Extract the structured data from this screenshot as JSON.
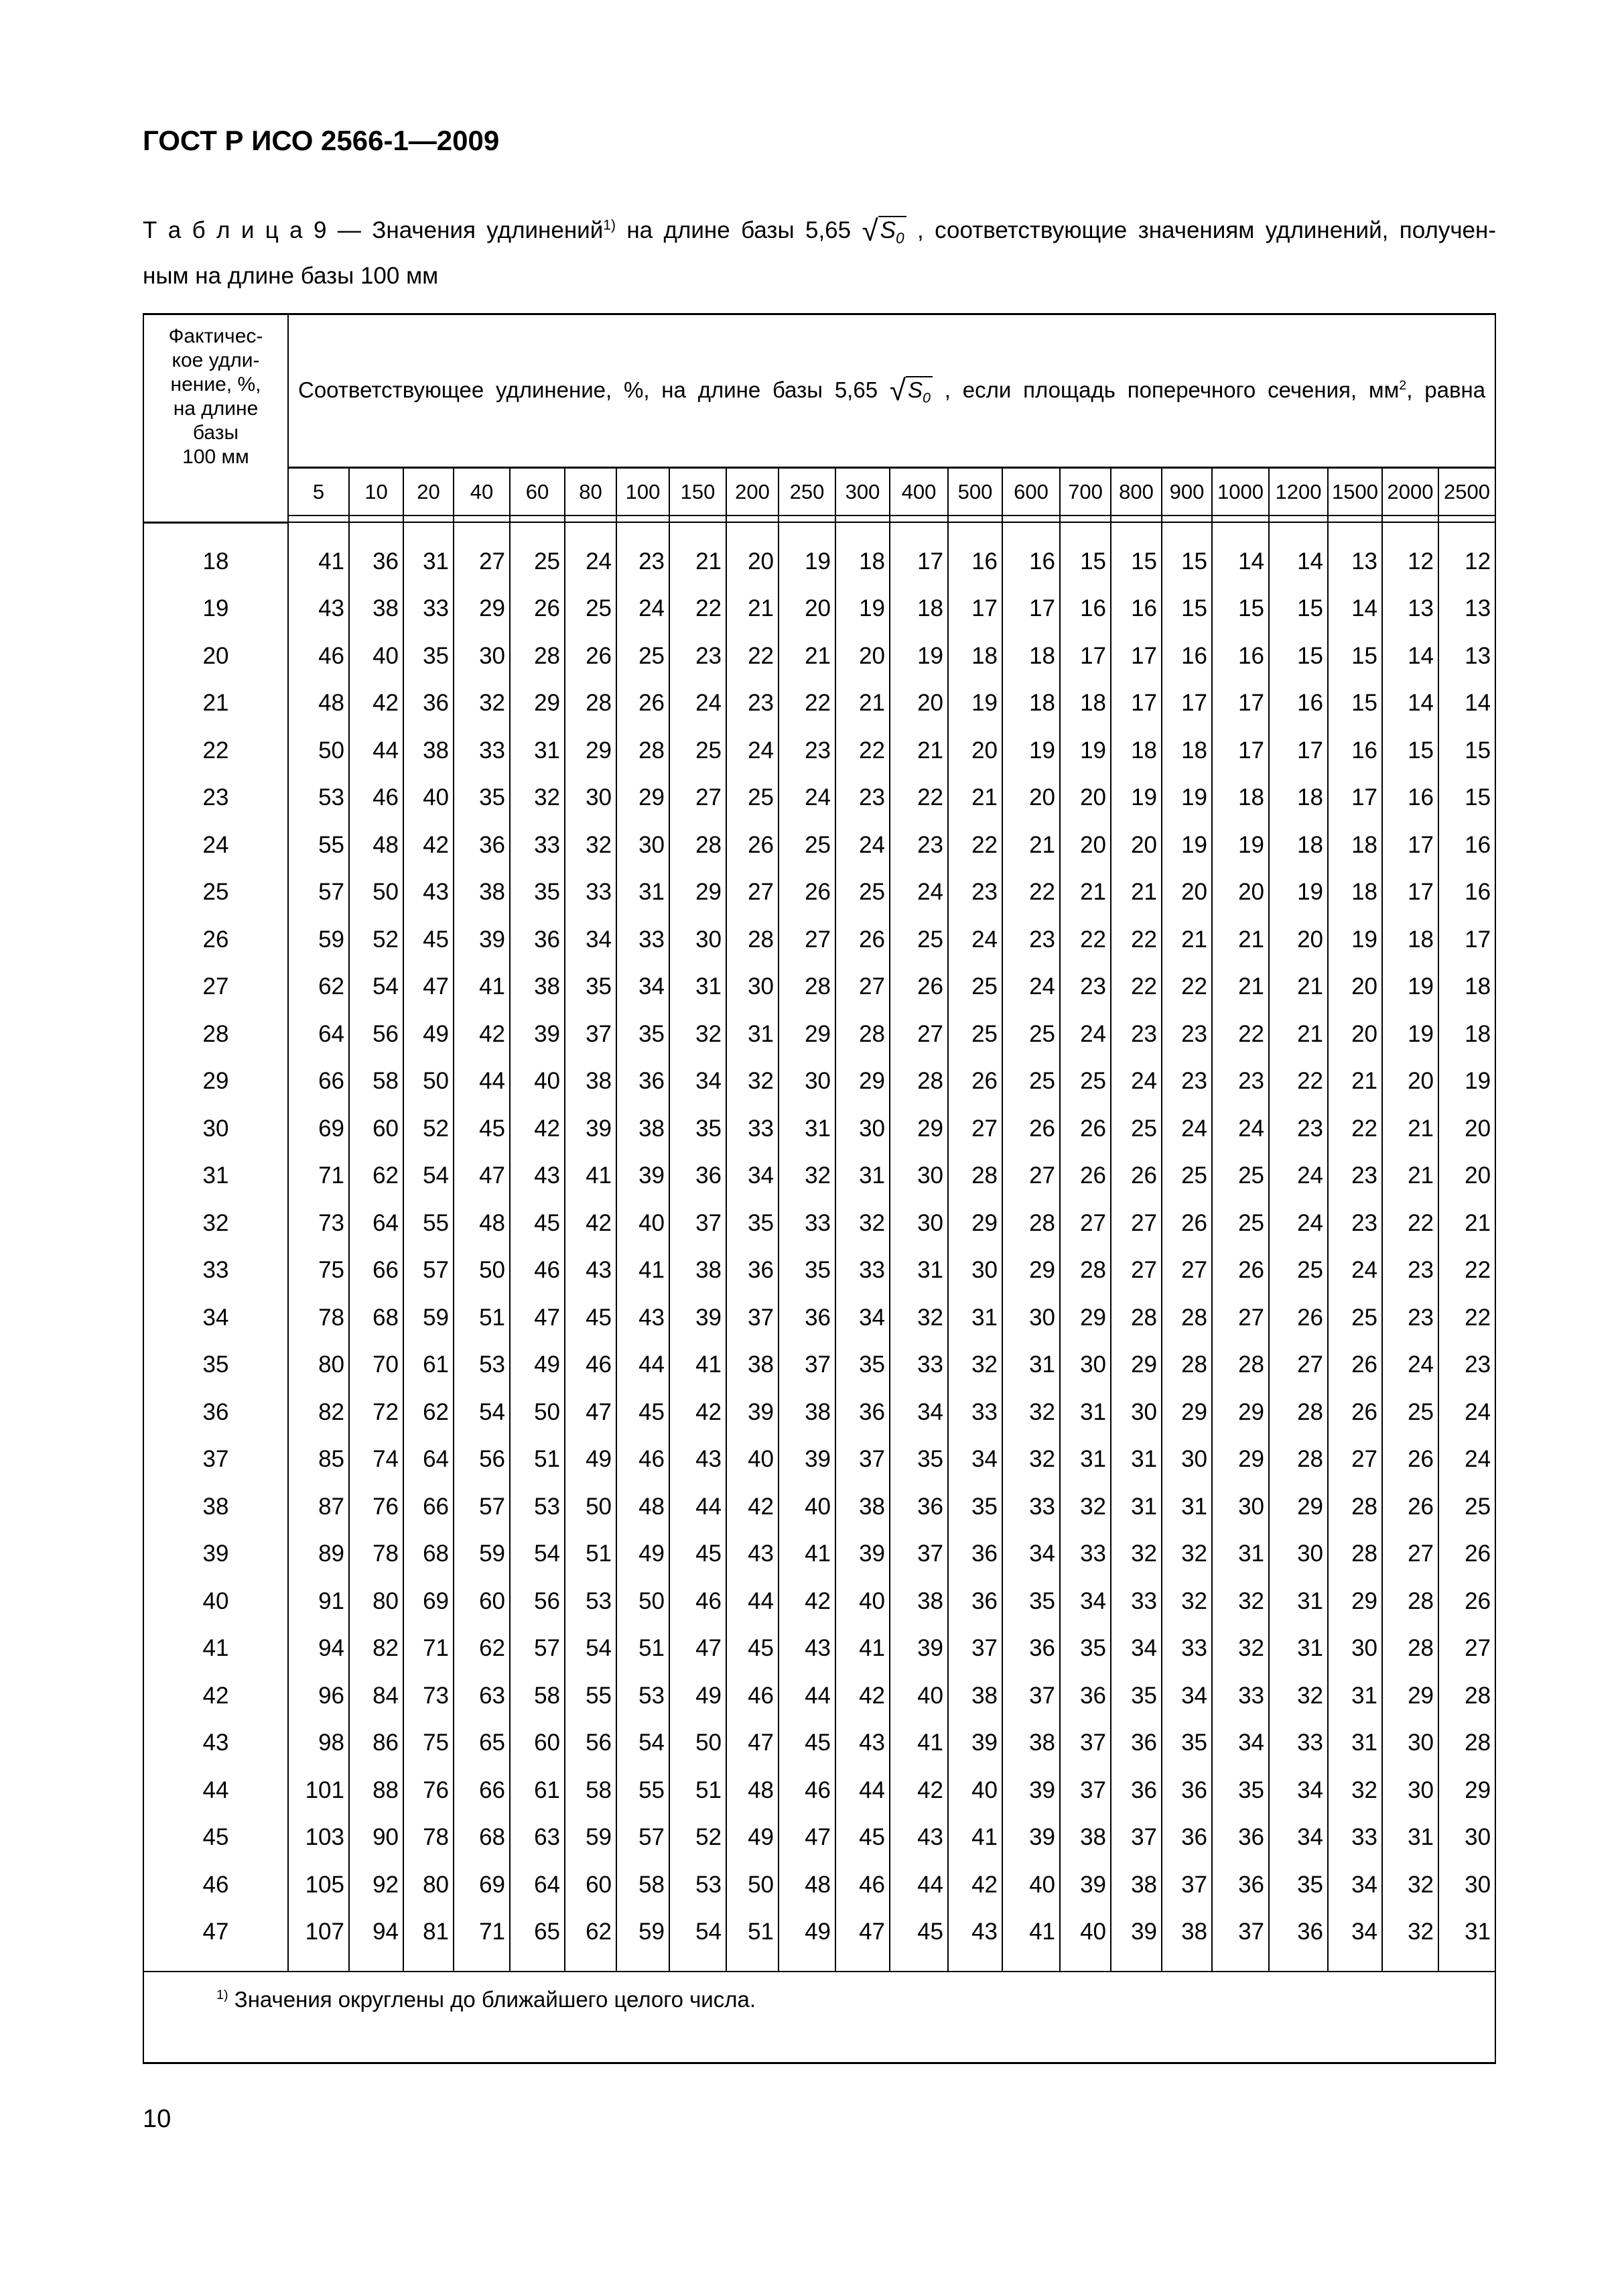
{
  "document": {
    "header": "ГОСТ Р ИСО 2566-1—2009",
    "page_number": "10"
  },
  "caption": {
    "label": "Т а б л и ц а  9",
    "text1": " — Значения удлинений",
    "sup": "1)",
    "text2": " на длине базы 5,65 ",
    "sqrt_var": "S",
    "sqrt_sub": "0",
    "text3": " , соответствующие значениям удлинений, получен-",
    "text4": "ным на длине базы 100 мм"
  },
  "table": {
    "left_header_lines": [
      "Фактичес-",
      "кое удли-",
      "нение, %,",
      "на длине",
      "базы",
      "100 мм"
    ],
    "main_header": {
      "text1": "Соответствующее удлинение, %, на длине базы 5,65 ",
      "sqrt_var": "S",
      "sqrt_sub": "0",
      "text2": " , если площадь поперечного сечения, мм",
      "sup": "2",
      "text3": ", равна"
    },
    "columns": [
      "5",
      "10",
      "20",
      "40",
      "60",
      "80",
      "100",
      "150",
      "200",
      "250",
      "300",
      "400",
      "500",
      "600",
      "700",
      "800",
      "900",
      "1000",
      "1200",
      "1500",
      "2000",
      "2500"
    ],
    "rows": [
      {
        "base": "18",
        "values": [
          "41",
          "36",
          "31",
          "27",
          "25",
          "24",
          "23",
          "21",
          "20",
          "19",
          "18",
          "17",
          "16",
          "16",
          "15",
          "15",
          "15",
          "14",
          "14",
          "13",
          "12",
          "12"
        ]
      },
      {
        "base": "19",
        "values": [
          "43",
          "38",
          "33",
          "29",
          "26",
          "25",
          "24",
          "22",
          "21",
          "20",
          "19",
          "18",
          "17",
          "17",
          "16",
          "16",
          "15",
          "15",
          "15",
          "14",
          "13",
          "13"
        ]
      },
      {
        "base": "20",
        "values": [
          "46",
          "40",
          "35",
          "30",
          "28",
          "26",
          "25",
          "23",
          "22",
          "21",
          "20",
          "19",
          "18",
          "18",
          "17",
          "17",
          "16",
          "16",
          "15",
          "15",
          "14",
          "13"
        ]
      },
      {
        "base": "21",
        "values": [
          "48",
          "42",
          "36",
          "32",
          "29",
          "28",
          "26",
          "24",
          "23",
          "22",
          "21",
          "20",
          "19",
          "18",
          "18",
          "17",
          "17",
          "17",
          "16",
          "15",
          "14",
          "14"
        ]
      },
      {
        "base": "22",
        "values": [
          "50",
          "44",
          "38",
          "33",
          "31",
          "29",
          "28",
          "25",
          "24",
          "23",
          "22",
          "21",
          "20",
          "19",
          "19",
          "18",
          "18",
          "17",
          "17",
          "16",
          "15",
          "15"
        ]
      },
      {
        "base": "23",
        "values": [
          "53",
          "46",
          "40",
          "35",
          "32",
          "30",
          "29",
          "27",
          "25",
          "24",
          "23",
          "22",
          "21",
          "20",
          "20",
          "19",
          "19",
          "18",
          "18",
          "17",
          "16",
          "15"
        ]
      },
      {
        "base": "24",
        "values": [
          "55",
          "48",
          "42",
          "36",
          "33",
          "32",
          "30",
          "28",
          "26",
          "25",
          "24",
          "23",
          "22",
          "21",
          "20",
          "20",
          "19",
          "19",
          "18",
          "18",
          "17",
          "16"
        ]
      },
      {
        "base": "25",
        "values": [
          "57",
          "50",
          "43",
          "38",
          "35",
          "33",
          "31",
          "29",
          "27",
          "26",
          "25",
          "24",
          "23",
          "22",
          "21",
          "21",
          "20",
          "20",
          "19",
          "18",
          "17",
          "16"
        ]
      },
      {
        "base": "26",
        "values": [
          "59",
          "52",
          "45",
          "39",
          "36",
          "34",
          "33",
          "30",
          "28",
          "27",
          "26",
          "25",
          "24",
          "23",
          "22",
          "22",
          "21",
          "21",
          "20",
          "19",
          "18",
          "17"
        ]
      },
      {
        "base": "27",
        "values": [
          "62",
          "54",
          "47",
          "41",
          "38",
          "35",
          "34",
          "31",
          "30",
          "28",
          "27",
          "26",
          "25",
          "24",
          "23",
          "22",
          "22",
          "21",
          "21",
          "20",
          "19",
          "18"
        ]
      },
      {
        "base": "28",
        "values": [
          "64",
          "56",
          "49",
          "42",
          "39",
          "37",
          "35",
          "32",
          "31",
          "29",
          "28",
          "27",
          "25",
          "25",
          "24",
          "23",
          "23",
          "22",
          "21",
          "20",
          "19",
          "18"
        ]
      },
      {
        "base": "29",
        "values": [
          "66",
          "58",
          "50",
          "44",
          "40",
          "38",
          "36",
          "34",
          "32",
          "30",
          "29",
          "28",
          "26",
          "25",
          "25",
          "24",
          "23",
          "23",
          "22",
          "21",
          "20",
          "19"
        ]
      },
      {
        "base": "30",
        "values": [
          "69",
          "60",
          "52",
          "45",
          "42",
          "39",
          "38",
          "35",
          "33",
          "31",
          "30",
          "29",
          "27",
          "26",
          "26",
          "25",
          "24",
          "24",
          "23",
          "22",
          "21",
          "20"
        ]
      },
      {
        "base": "31",
        "values": [
          "71",
          "62",
          "54",
          "47",
          "43",
          "41",
          "39",
          "36",
          "34",
          "32",
          "31",
          "30",
          "28",
          "27",
          "26",
          "26",
          "25",
          "25",
          "24",
          "23",
          "21",
          "20"
        ]
      },
      {
        "base": "32",
        "values": [
          "73",
          "64",
          "55",
          "48",
          "45",
          "42",
          "40",
          "37",
          "35",
          "33",
          "32",
          "30",
          "29",
          "28",
          "27",
          "27",
          "26",
          "25",
          "24",
          "23",
          "22",
          "21"
        ]
      },
      {
        "base": "33",
        "values": [
          "75",
          "66",
          "57",
          "50",
          "46",
          "43",
          "41",
          "38",
          "36",
          "35",
          "33",
          "31",
          "30",
          "29",
          "28",
          "27",
          "27",
          "26",
          "25",
          "24",
          "23",
          "22"
        ]
      },
      {
        "base": "34",
        "values": [
          "78",
          "68",
          "59",
          "51",
          "47",
          "45",
          "43",
          "39",
          "37",
          "36",
          "34",
          "32",
          "31",
          "30",
          "29",
          "28",
          "28",
          "27",
          "26",
          "25",
          "23",
          "22"
        ]
      },
      {
        "base": "35",
        "values": [
          "80",
          "70",
          "61",
          "53",
          "49",
          "46",
          "44",
          "41",
          "38",
          "37",
          "35",
          "33",
          "32",
          "31",
          "30",
          "29",
          "28",
          "28",
          "27",
          "26",
          "24",
          "23"
        ]
      },
      {
        "base": "36",
        "values": [
          "82",
          "72",
          "62",
          "54",
          "50",
          "47",
          "45",
          "42",
          "39",
          "38",
          "36",
          "34",
          "33",
          "32",
          "31",
          "30",
          "29",
          "29",
          "28",
          "26",
          "25",
          "24"
        ]
      },
      {
        "base": "37",
        "values": [
          "85",
          "74",
          "64",
          "56",
          "51",
          "49",
          "46",
          "43",
          "40",
          "39",
          "37",
          "35",
          "34",
          "32",
          "31",
          "31",
          "30",
          "29",
          "28",
          "27",
          "26",
          "24"
        ]
      },
      {
        "base": "38",
        "values": [
          "87",
          "76",
          "66",
          "57",
          "53",
          "50",
          "48",
          "44",
          "42",
          "40",
          "38",
          "36",
          "35",
          "33",
          "32",
          "31",
          "31",
          "30",
          "29",
          "28",
          "26",
          "25"
        ]
      },
      {
        "base": "39",
        "values": [
          "89",
          "78",
          "68",
          "59",
          "54",
          "51",
          "49",
          "45",
          "43",
          "41",
          "39",
          "37",
          "36",
          "34",
          "33",
          "32",
          "32",
          "31",
          "30",
          "28",
          "27",
          "26"
        ]
      },
      {
        "base": "40",
        "values": [
          "91",
          "80",
          "69",
          "60",
          "56",
          "53",
          "50",
          "46",
          "44",
          "42",
          "40",
          "38",
          "36",
          "35",
          "34",
          "33",
          "32",
          "32",
          "31",
          "29",
          "28",
          "26"
        ]
      },
      {
        "base": "41",
        "values": [
          "94",
          "82",
          "71",
          "62",
          "57",
          "54",
          "51",
          "47",
          "45",
          "43",
          "41",
          "39",
          "37",
          "36",
          "35",
          "34",
          "33",
          "32",
          "31",
          "30",
          "28",
          "27"
        ]
      },
      {
        "base": "42",
        "values": [
          "96",
          "84",
          "73",
          "63",
          "58",
          "55",
          "53",
          "49",
          "46",
          "44",
          "42",
          "40",
          "38",
          "37",
          "36",
          "35",
          "34",
          "33",
          "32",
          "31",
          "29",
          "28"
        ]
      },
      {
        "base": "43",
        "values": [
          "98",
          "86",
          "75",
          "65",
          "60",
          "56",
          "54",
          "50",
          "47",
          "45",
          "43",
          "41",
          "39",
          "38",
          "37",
          "36",
          "35",
          "34",
          "33",
          "31",
          "30",
          "28"
        ]
      },
      {
        "base": "44",
        "values": [
          "101",
          "88",
          "76",
          "66",
          "61",
          "58",
          "55",
          "51",
          "48",
          "46",
          "44",
          "42",
          "40",
          "39",
          "37",
          "36",
          "36",
          "35",
          "34",
          "32",
          "30",
          "29"
        ]
      },
      {
        "base": "45",
        "values": [
          "103",
          "90",
          "78",
          "68",
          "63",
          "59",
          "57",
          "52",
          "49",
          "47",
          "45",
          "43",
          "41",
          "39",
          "38",
          "37",
          "36",
          "36",
          "34",
          "33",
          "31",
          "30"
        ]
      },
      {
        "base": "46",
        "values": [
          "105",
          "92",
          "80",
          "69",
          "64",
          "60",
          "58",
          "53",
          "50",
          "48",
          "46",
          "44",
          "42",
          "40",
          "39",
          "38",
          "37",
          "36",
          "35",
          "34",
          "32",
          "30"
        ]
      },
      {
        "base": "47",
        "values": [
          "107",
          "94",
          "81",
          "71",
          "65",
          "62",
          "59",
          "54",
          "51",
          "49",
          "47",
          "45",
          "43",
          "41",
          "40",
          "39",
          "38",
          "37",
          "36",
          "34",
          "32",
          "31"
        ]
      }
    ],
    "footnote": {
      "mark": "1)",
      "text": " Значения округлены до ближайшего целого числа."
    }
  }
}
